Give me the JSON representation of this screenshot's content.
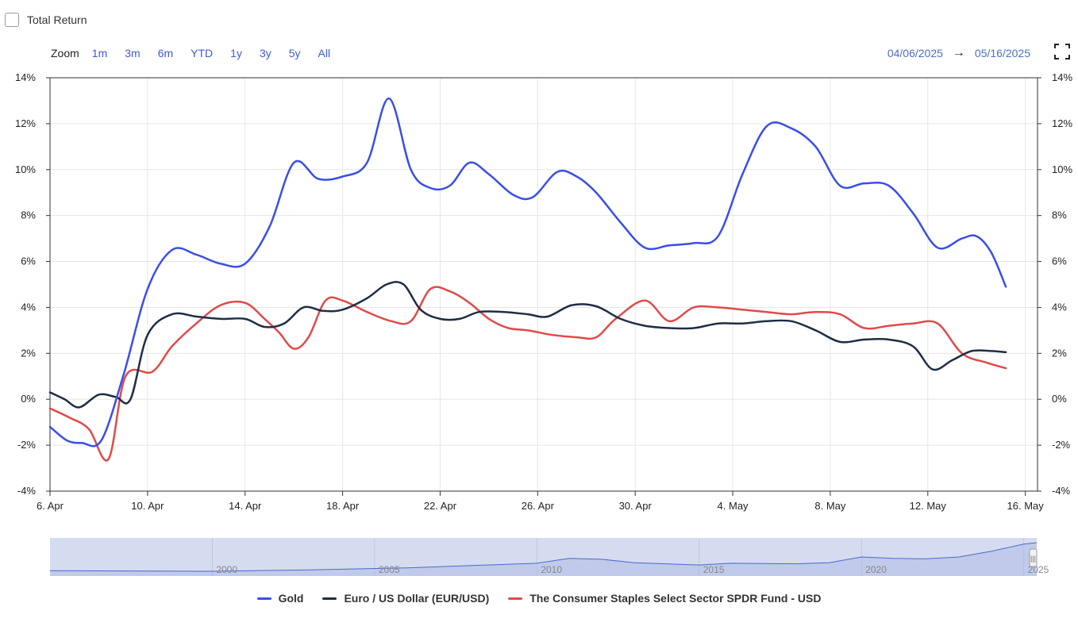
{
  "header": {
    "total_return_label": "Total Return",
    "zoom_label": "Zoom",
    "zoom_buttons": [
      "1m",
      "3m",
      "6m",
      "YTD",
      "1y",
      "3y",
      "5y",
      "All"
    ],
    "date_from": "04/06/2025",
    "date_arrow": "→",
    "date_to": "05/16/2025"
  },
  "icons": {
    "fullscreen": "fullscreen-icon"
  },
  "colors": {
    "gold": "#3a4ee8",
    "eurusd": "#1f2d45",
    "xlp": "#e04a4a",
    "navigator": "#4a6ad0"
  },
  "chart_data": {
    "type": "line",
    "xlabel": "",
    "ylabel": "",
    "ylim": [
      -4,
      14
    ],
    "y_ticks": [
      "-4%",
      "-2%",
      "0%",
      "2%",
      "4%",
      "6%",
      "8%",
      "10%",
      "12%",
      "14%"
    ],
    "x_ticks": [
      {
        "day": 0,
        "label": "6. Apr"
      },
      {
        "day": 4,
        "label": "10. Apr"
      },
      {
        "day": 8,
        "label": "14. Apr"
      },
      {
        "day": 12,
        "label": "18. Apr"
      },
      {
        "day": 16,
        "label": "22. Apr"
      },
      {
        "day": 20,
        "label": "26. Apr"
      },
      {
        "day": 24,
        "label": "30. Apr"
      },
      {
        "day": 28,
        "label": "4. May"
      },
      {
        "day": 32,
        "label": "8. May"
      },
      {
        "day": 36,
        "label": "12. May"
      },
      {
        "day": 40,
        "label": "16. May"
      }
    ],
    "grid": true,
    "legend_position": "bottom",
    "series": [
      {
        "name": "Gold",
        "points": [
          [
            0,
            -1.2
          ],
          [
            0.7,
            -1.8
          ],
          [
            1.3,
            -1.9
          ],
          [
            2.1,
            -1.8
          ],
          [
            3,
            1
          ],
          [
            4,
            4.8
          ],
          [
            5,
            6.5
          ],
          [
            6,
            6.3
          ],
          [
            7,
            5.9
          ],
          [
            8,
            5.9
          ],
          [
            9,
            7.5
          ],
          [
            10,
            10.3
          ],
          [
            11,
            9.6
          ],
          [
            12,
            9.7
          ],
          [
            13,
            10.3
          ],
          [
            13.9,
            13.1
          ],
          [
            14.8,
            10
          ],
          [
            15.6,
            9.2
          ],
          [
            16.4,
            9.3
          ],
          [
            17.2,
            10.3
          ],
          [
            18,
            9.8
          ],
          [
            19,
            8.9
          ],
          [
            19.8,
            8.8
          ],
          [
            20.8,
            9.9
          ],
          [
            21.6,
            9.7
          ],
          [
            22.4,
            9
          ],
          [
            23.4,
            7.7
          ],
          [
            24.4,
            6.6
          ],
          [
            25.4,
            6.7
          ],
          [
            26.4,
            6.8
          ],
          [
            27.4,
            7.1
          ],
          [
            28.4,
            9.8
          ],
          [
            29.4,
            11.9
          ],
          [
            30.4,
            11.8
          ],
          [
            31.4,
            11
          ],
          [
            32.4,
            9.3
          ],
          [
            33.4,
            9.4
          ],
          [
            34.4,
            9.3
          ],
          [
            35.4,
            8.1
          ],
          [
            36.4,
            6.6
          ],
          [
            37.4,
            7
          ],
          [
            38,
            7.1
          ],
          [
            38.6,
            6.4
          ],
          [
            39.2,
            4.9
          ]
        ]
      },
      {
        "name": "Euro / US Dollar (EUR/USD)",
        "points": [
          [
            0,
            0.3
          ],
          [
            0.6,
            0
          ],
          [
            1.2,
            -0.35
          ],
          [
            2,
            0.2
          ],
          [
            2.7,
            0.1
          ],
          [
            3.3,
            0
          ],
          [
            4,
            2.8
          ],
          [
            5,
            3.7
          ],
          [
            6,
            3.6
          ],
          [
            7,
            3.5
          ],
          [
            8,
            3.5
          ],
          [
            8.8,
            3.15
          ],
          [
            9.6,
            3.3
          ],
          [
            10.4,
            4
          ],
          [
            11.2,
            3.85
          ],
          [
            12,
            3.9
          ],
          [
            13,
            4.4
          ],
          [
            13.8,
            5
          ],
          [
            14.5,
            5
          ],
          [
            15.2,
            3.9
          ],
          [
            16,
            3.5
          ],
          [
            16.8,
            3.5
          ],
          [
            17.6,
            3.8
          ],
          [
            18.6,
            3.8
          ],
          [
            19.6,
            3.7
          ],
          [
            20.4,
            3.6
          ],
          [
            21.4,
            4.1
          ],
          [
            22.4,
            4.05
          ],
          [
            23.4,
            3.5
          ],
          [
            24.4,
            3.2
          ],
          [
            25.4,
            3.1
          ],
          [
            26.4,
            3.1
          ],
          [
            27.4,
            3.3
          ],
          [
            28.4,
            3.3
          ],
          [
            29.4,
            3.4
          ],
          [
            30.4,
            3.4
          ],
          [
            31.4,
            3
          ],
          [
            32.4,
            2.5
          ],
          [
            33.4,
            2.6
          ],
          [
            34.4,
            2.6
          ],
          [
            35.4,
            2.3
          ],
          [
            36.2,
            1.3
          ],
          [
            37,
            1.7
          ],
          [
            37.8,
            2.1
          ],
          [
            38.6,
            2.1
          ],
          [
            39.2,
            2.05
          ]
        ]
      },
      {
        "name": "The Consumer Staples Select Sector SPDR Fund - USD",
        "points": [
          [
            0,
            -0.4
          ],
          [
            0.8,
            -0.8
          ],
          [
            1.6,
            -1.3
          ],
          [
            2.4,
            -2.6
          ],
          [
            3.1,
            1
          ],
          [
            4.2,
            1.2
          ],
          [
            5,
            2.3
          ],
          [
            6,
            3.3
          ],
          [
            7,
            4.1
          ],
          [
            8,
            4.2
          ],
          [
            8.8,
            3.5
          ],
          [
            9.4,
            2.9
          ],
          [
            10,
            2.2
          ],
          [
            10.6,
            2.7
          ],
          [
            11.3,
            4.3
          ],
          [
            12,
            4.3
          ],
          [
            13,
            3.8
          ],
          [
            14,
            3.4
          ],
          [
            14.8,
            3.4
          ],
          [
            15.6,
            4.8
          ],
          [
            16.4,
            4.7
          ],
          [
            17.2,
            4.2
          ],
          [
            18,
            3.5
          ],
          [
            18.8,
            3.1
          ],
          [
            19.6,
            3
          ],
          [
            20.6,
            2.8
          ],
          [
            21.6,
            2.7
          ],
          [
            22.4,
            2.7
          ],
          [
            23.2,
            3.5
          ],
          [
            24.4,
            4.3
          ],
          [
            25.4,
            3.4
          ],
          [
            26.4,
            4
          ],
          [
            27.4,
            4
          ],
          [
            28.4,
            3.9
          ],
          [
            29.4,
            3.8
          ],
          [
            30.4,
            3.7
          ],
          [
            31.4,
            3.8
          ],
          [
            32.4,
            3.7
          ],
          [
            33.4,
            3.1
          ],
          [
            34.4,
            3.2
          ],
          [
            35.4,
            3.3
          ],
          [
            36.4,
            3.3
          ],
          [
            37.4,
            2
          ],
          [
            38.4,
            1.6
          ],
          [
            39.2,
            1.35
          ]
        ]
      }
    ]
  },
  "navigator": {
    "year_labels": [
      "2000",
      "2005",
      "2010",
      "2015",
      "2020",
      "2025"
    ],
    "handle_glyph": "|||"
  }
}
